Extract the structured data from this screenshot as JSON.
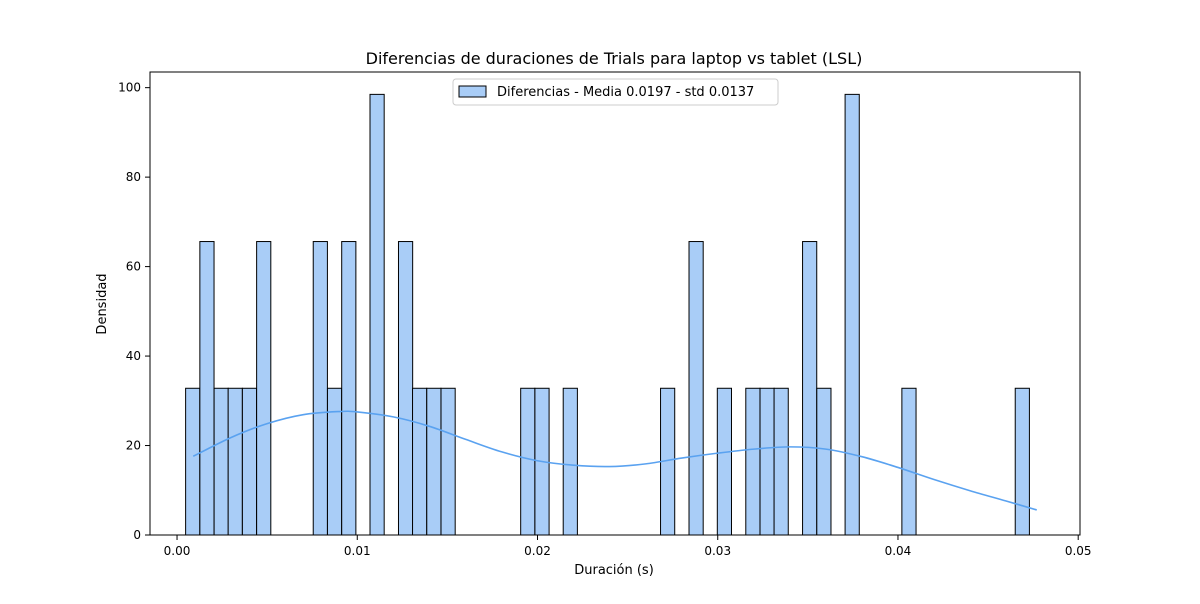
{
  "chart_data": {
    "type": "bar",
    "title": "Diferencias de duraciones de Trials para laptop vs tablet (LSL)",
    "xlabel": "Duración (s)",
    "ylabel": "Densidad",
    "xlim": [
      -0.0015,
      0.0501
    ],
    "ylim": [
      0,
      103.5
    ],
    "xticks": [
      "0.00",
      "0.01",
      "0.02",
      "0.03",
      "0.04",
      "0.05"
    ],
    "xtick_values": [
      0.0,
      0.01,
      0.02,
      0.03,
      0.04,
      0.05
    ],
    "yticks": [
      "0",
      "20",
      "40",
      "60",
      "80",
      "100"
    ],
    "ytick_values": [
      0,
      20,
      40,
      60,
      80,
      100
    ],
    "grid": false,
    "legend": {
      "position": "top-center",
      "label": "Diferencias - Media 0.0197 - std 0.0137"
    },
    "bar_color": "#a9cdf7",
    "edge_color": "#000000",
    "kde_color": "#5aa2f0",
    "bin_width": 0.000787,
    "bins": [
      {
        "x": 0.00087,
        "y": 32.8
      },
      {
        "x": 0.00166,
        "y": 65.6
      },
      {
        "x": 0.00245,
        "y": 32.8
      },
      {
        "x": 0.00323,
        "y": 32.8
      },
      {
        "x": 0.00402,
        "y": 32.8
      },
      {
        "x": 0.00481,
        "y": 65.6
      },
      {
        "x": 0.00795,
        "y": 65.6
      },
      {
        "x": 0.00874,
        "y": 32.8
      },
      {
        "x": 0.00953,
        "y": 65.6
      },
      {
        "x": 0.0111,
        "y": 98.5
      },
      {
        "x": 0.01268,
        "y": 65.6
      },
      {
        "x": 0.01346,
        "y": 32.8
      },
      {
        "x": 0.01425,
        "y": 32.8
      },
      {
        "x": 0.01504,
        "y": 32.8
      },
      {
        "x": 0.01946,
        "y": 32.8
      },
      {
        "x": 0.02025,
        "y": 32.8
      },
      {
        "x": 0.02182,
        "y": 32.8
      },
      {
        "x": 0.02722,
        "y": 32.8
      },
      {
        "x": 0.0288,
        "y": 65.6
      },
      {
        "x": 0.03037,
        "y": 32.8
      },
      {
        "x": 0.03195,
        "y": 32.8
      },
      {
        "x": 0.03274,
        "y": 32.8
      },
      {
        "x": 0.03352,
        "y": 32.8
      },
      {
        "x": 0.0351,
        "y": 65.6
      },
      {
        "x": 0.03589,
        "y": 32.8
      },
      {
        "x": 0.03746,
        "y": 98.5
      },
      {
        "x": 0.04061,
        "y": 32.8
      },
      {
        "x": 0.0469,
        "y": 32.8
      }
    ],
    "kde": {
      "x": [
        0.0009,
        0.003,
        0.005,
        0.007,
        0.009,
        0.01,
        0.012,
        0.014,
        0.016,
        0.018,
        0.02,
        0.022,
        0.024,
        0.026,
        0.028,
        0.03,
        0.032,
        0.034,
        0.036,
        0.038,
        0.04,
        0.042,
        0.044,
        0.046,
        0.0477
      ],
      "y": [
        17.6,
        21.8,
        24.9,
        26.9,
        27.6,
        27.5,
        26.4,
        24.3,
        21.4,
        18.6,
        16.6,
        15.6,
        15.3,
        15.9,
        17.2,
        18.3,
        19.2,
        19.7,
        19.2,
        17.5,
        15.1,
        12.4,
        9.9,
        7.6,
        5.6
      ]
    }
  }
}
